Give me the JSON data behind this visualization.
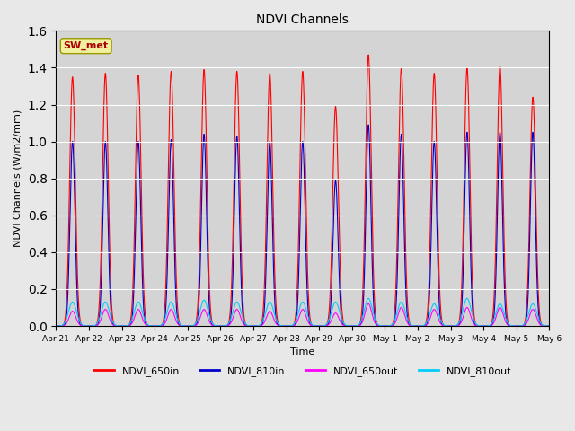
{
  "title": "NDVI Channels",
  "xlabel": "Time",
  "ylabel": "NDVI Channels (W/m2/mm)",
  "ylim": [
    0,
    1.6
  ],
  "yticks": [
    0.0,
    0.2,
    0.4,
    0.6,
    0.8,
    1.0,
    1.2,
    1.4,
    1.6
  ],
  "background_color": "#e8e8e8",
  "plot_bg_color": "#d4d4d4",
  "annotation_text": "SW_met",
  "annotation_bg": "#f0f0a0",
  "annotation_text_color": "#aa0000",
  "colors": {
    "NDVI_650in": "#ff0000",
    "NDVI_810in": "#0000cc",
    "NDVI_650out": "#ff00ff",
    "NDVI_810out": "#00ccff"
  },
  "n_days": 15,
  "peaks_650in": [
    1.35,
    1.37,
    1.36,
    1.38,
    1.39,
    1.38,
    1.37,
    1.38,
    1.19,
    1.47,
    1.4,
    1.37,
    1.4,
    1.41,
    1.24
  ],
  "peaks_810in": [
    1.0,
    1.0,
    1.0,
    1.01,
    1.04,
    1.03,
    1.0,
    1.0,
    0.79,
    1.09,
    1.04,
    1.0,
    1.05,
    1.05,
    1.05
  ],
  "peaks_650out": [
    0.08,
    0.09,
    0.09,
    0.09,
    0.09,
    0.09,
    0.08,
    0.09,
    0.07,
    0.12,
    0.1,
    0.09,
    0.1,
    0.1,
    0.09
  ],
  "peaks_810out": [
    0.13,
    0.13,
    0.13,
    0.13,
    0.14,
    0.13,
    0.13,
    0.13,
    0.13,
    0.15,
    0.13,
    0.12,
    0.15,
    0.12,
    0.12
  ],
  "xticklabels": [
    "Apr 21",
    "Apr 22",
    "Apr 23",
    "Apr 24",
    "Apr 25",
    "Apr 26",
    "Apr 27",
    "Apr 28",
    "Apr 29",
    "Apr 30",
    "May 1",
    "May 2",
    "May 3",
    "May 4",
    "May 5",
    "May 6"
  ]
}
